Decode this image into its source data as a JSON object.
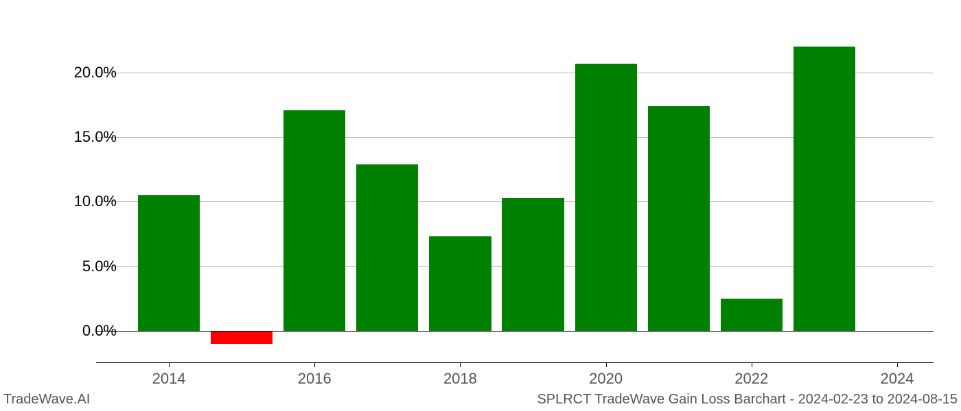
{
  "chart": {
    "type": "bar",
    "background_color": "#ffffff",
    "grid_color": "#b0b0b0",
    "axis_color": "#000000",
    "ytick_label_color": "#000000",
    "xtick_label_color": "#555555",
    "label_fontsize": 22,
    "ylim_min": -2.5,
    "ylim_max": 23.5,
    "yticks": [
      0,
      5,
      10,
      15,
      20
    ],
    "ytick_labels": [
      "0.0%",
      "5.0%",
      "10.0%",
      "15.0%",
      "20.0%"
    ],
    "xticks": [
      2014,
      2016,
      2018,
      2020,
      2022,
      2024
    ],
    "xtick_labels": [
      "2014",
      "2016",
      "2018",
      "2020",
      "2022",
      "2024"
    ],
    "x_domain_min": 2013,
    "x_domain_max": 2024.5,
    "bar_width_years": 0.85,
    "years": [
      2014,
      2015,
      2016,
      2017,
      2018,
      2019,
      2020,
      2021,
      2022,
      2023
    ],
    "values": [
      10.5,
      -1.0,
      17.1,
      12.9,
      7.3,
      10.3,
      20.7,
      17.4,
      2.5,
      22.0
    ],
    "positive_color": "#008000",
    "negative_color": "#ff0000"
  },
  "footer": {
    "left": "TradeWave.AI",
    "right": "SPLRCT TradeWave Gain Loss Barchart - 2024-02-23 to 2024-08-15"
  }
}
